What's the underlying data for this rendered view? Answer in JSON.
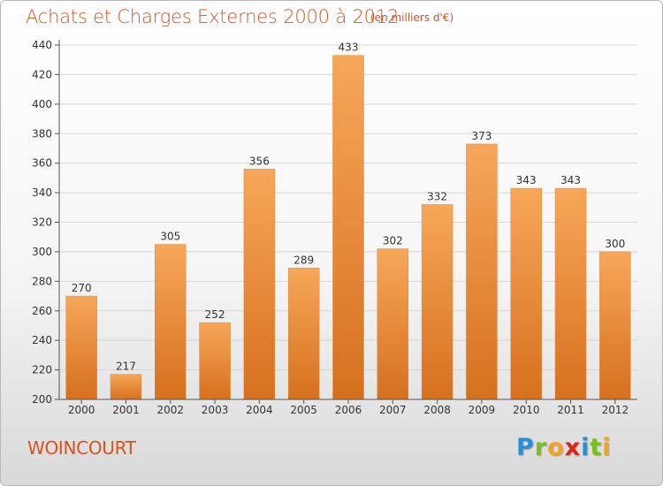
{
  "title": "Achats et Charges Externes 2000 à 2012",
  "subtitle": "(en milliers d'€)",
  "commune": "WOINCOURT",
  "logo": {
    "letters": [
      "P",
      "r",
      "o",
      "x",
      "i",
      "t",
      "i"
    ],
    "colors": [
      "#2a8fd6",
      "#7bbf1a",
      "#f2a21d",
      "#d9261c",
      "#2a8fd6",
      "#7bbf1a",
      "#f2a21d"
    ]
  },
  "colors": {
    "bar_top": "#f7a75a",
    "bar_bottom": "#d6701e",
    "title": "#d9531e",
    "grid": "#d6d6d6"
  },
  "chart_data": {
    "type": "bar",
    "categories": [
      "2000",
      "2001",
      "2002",
      "2003",
      "2004",
      "2005",
      "2006",
      "2007",
      "2008",
      "2009",
      "2010",
      "2011",
      "2012"
    ],
    "values": [
      270,
      217,
      305,
      252,
      356,
      289,
      433,
      302,
      332,
      373,
      343,
      343,
      300
    ],
    "ylim": [
      200,
      440
    ],
    "yticks": [
      200,
      220,
      240,
      260,
      280,
      300,
      320,
      340,
      360,
      380,
      400,
      420,
      440
    ],
    "grid": true
  }
}
